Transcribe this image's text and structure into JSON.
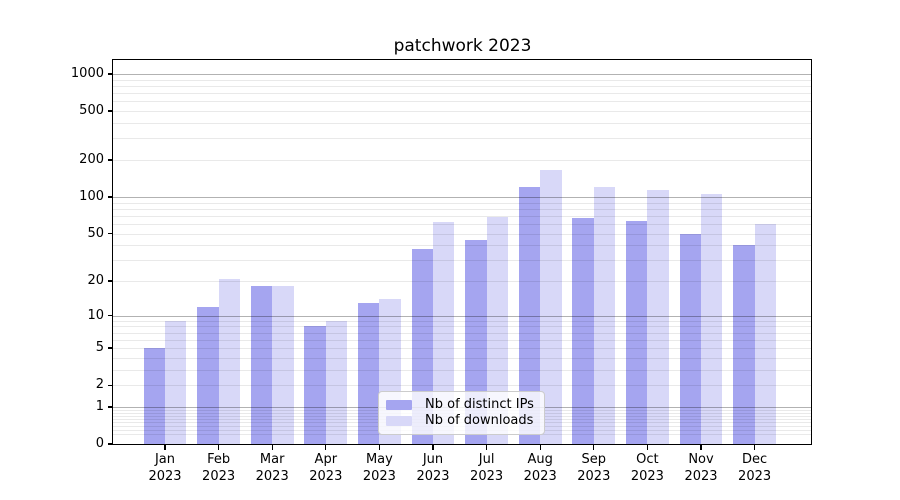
{
  "chart_data": {
    "type": "bar",
    "title": "patchwork 2023",
    "categories": [
      "Jan",
      "Feb",
      "Mar",
      "Apr",
      "May",
      "Jun",
      "Jul",
      "Aug",
      "Sep",
      "Oct",
      "Nov",
      "Dec"
    ],
    "year": "2023",
    "series": [
      {
        "name": "Nb of distinct IPs",
        "color": "#a5a5f0",
        "values": [
          5,
          12,
          18,
          8,
          13,
          37,
          44,
          120,
          67,
          64,
          50,
          40
        ]
      },
      {
        "name": "Nb of downloads",
        "color": "#d8d8f8",
        "values": [
          9,
          21,
          18,
          9,
          14,
          62,
          68,
          165,
          120,
          115,
          106,
          60
        ]
      }
    ],
    "xlabel": "",
    "ylabel": "",
    "y_ticks": [
      0,
      1,
      2,
      5,
      10,
      20,
      50,
      100,
      200,
      500,
      1000
    ],
    "y_scale": "log10(1+y)",
    "ylim": [
      0,
      1280
    ],
    "grid": "on",
    "grid_position": "above-bars",
    "legend_position": "lower center"
  }
}
